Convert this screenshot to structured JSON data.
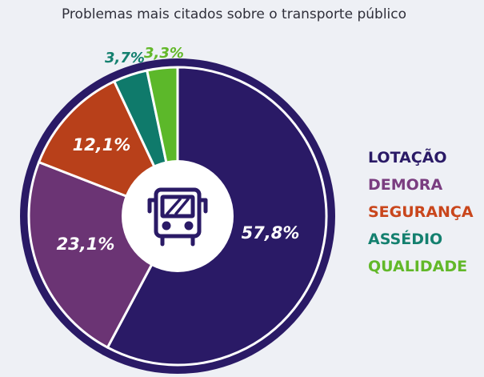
{
  "chart_data": {
    "type": "pie",
    "title": "Problemas mais citados sobre o transporte público",
    "donut": true,
    "center_icon": "bus-icon",
    "start": "12 o'clock, clockwise",
    "legend_position": "right",
    "slices": [
      {
        "label": "LOTAÇÃO",
        "value": 57.8,
        "value_label": "57,8%",
        "color": "#2a1a66",
        "legend_color": "#2a1a66"
      },
      {
        "label": "DEMORA",
        "value": 23.1,
        "value_label": "23,1%",
        "color": "#6b3474",
        "legend_color": "#7a3d80"
      },
      {
        "label": "SEGURANÇA",
        "value": 12.1,
        "value_label": "12,1%",
        "color": "#b8401a",
        "legend_color": "#c9461c"
      },
      {
        "label": "ASSÉDIO",
        "value": 3.7,
        "value_label": "3,7%",
        "color": "#0f7a6b",
        "legend_color": "#14806f"
      },
      {
        "label": "QUALIDADE",
        "value": 3.3,
        "value_label": "3,3%",
        "color": "#5cb82a",
        "legend_color": "#62b829"
      }
    ],
    "colors": {
      "ring": "#2a1a66",
      "separator": "#ffffff",
      "hole": "#ffffff",
      "icon": "#2a1a66",
      "label_text": "#ffffff"
    }
  }
}
